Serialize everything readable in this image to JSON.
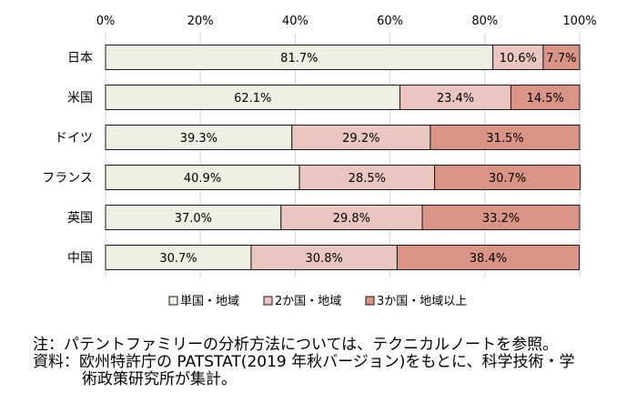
{
  "chart_data": {
    "type": "bar",
    "orientation": "horizontal",
    "stacked": "percent",
    "categories": [
      "日本",
      "米国",
      "ドイツ",
      "フランス",
      "英国",
      "中国"
    ],
    "series": [
      {
        "name": "単国・地域",
        "color": "#efefe3",
        "values": [
          81.7,
          62.1,
          39.3,
          40.9,
          37.0,
          30.7
        ],
        "labels": [
          "81.7%",
          "62.1%",
          "39.3%",
          "40.9%",
          "37.0%",
          "30.7%"
        ]
      },
      {
        "name": "2か国・地域",
        "color": "#ebc6c1",
        "values": [
          10.6,
          23.4,
          29.2,
          28.5,
          29.8,
          30.8
        ],
        "labels": [
          "10.6%",
          "23.4%",
          "29.2%",
          "28.5%",
          "29.8%",
          "30.8%"
        ]
      },
      {
        "name": "3か国・地域以上",
        "color": "#d99486",
        "values": [
          7.7,
          14.5,
          31.5,
          30.7,
          33.2,
          38.4
        ],
        "labels": [
          "7.7%",
          "14.5%",
          "31.5%",
          "30.7%",
          "33.2%",
          "38.4%"
        ]
      }
    ],
    "xticks": [
      "0%",
      "20%",
      "40%",
      "60%",
      "80%",
      "100%"
    ],
    "xlim": [
      0,
      100
    ],
    "grid": true,
    "legend_position": "bottom"
  },
  "notes": {
    "line1": "注：パテントファミリーの分析方法については、テクニカルノートを参照。",
    "line2": "資料：欧州特許庁の PATSTAT(2019 年秋バージョン)をもとに、科学技術・学",
    "line3": "術政策研究所が集計。"
  }
}
